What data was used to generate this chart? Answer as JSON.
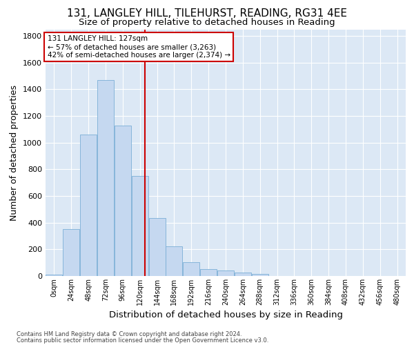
{
  "title_line1": "131, LANGLEY HILL, TILEHURST, READING, RG31 4EE",
  "title_line2": "Size of property relative to detached houses in Reading",
  "xlabel": "Distribution of detached houses by size in Reading",
  "ylabel": "Number of detached properties",
  "property_label": "131 LANGLEY HILL: 127sqm",
  "annotation_line1": "← 57% of detached houses are smaller (3,263)",
  "annotation_line2": "42% of semi-detached houses are larger (2,374) →",
  "footer_line1": "Contains HM Land Registry data © Crown copyright and database right 2024.",
  "footer_line2": "Contains public sector information licensed under the Open Government Licence v3.0.",
  "bin_centers": [
    0,
    24,
    48,
    72,
    96,
    120,
    144,
    168,
    192,
    216,
    240,
    264,
    288,
    312,
    336,
    360,
    384,
    408,
    432,
    456,
    480
  ],
  "bar_heights": [
    10,
    350,
    1060,
    1470,
    1130,
    750,
    435,
    225,
    105,
    50,
    40,
    25,
    15,
    0,
    0,
    0,
    0,
    0,
    0,
    0,
    0
  ],
  "bar_color": "#c5d8f0",
  "bar_edgecolor": "#7aaed6",
  "vline_color": "#cc0000",
  "vline_x": 127,
  "ylim": [
    0,
    1850
  ],
  "yticks": [
    0,
    200,
    400,
    600,
    800,
    1000,
    1200,
    1400,
    1600,
    1800
  ],
  "background_color": "#dce8f5",
  "grid_color": "#ffffff",
  "fig_background": "#ffffff",
  "annotation_box_facecolor": "#ffffff",
  "annotation_box_edgecolor": "#cc0000",
  "title_fontsize": 11,
  "subtitle_fontsize": 9.5,
  "axis_label_fontsize": 9,
  "tick_label_fontsize": 7,
  "annotation_fontsize": 7.5,
  "footer_fontsize": 6
}
